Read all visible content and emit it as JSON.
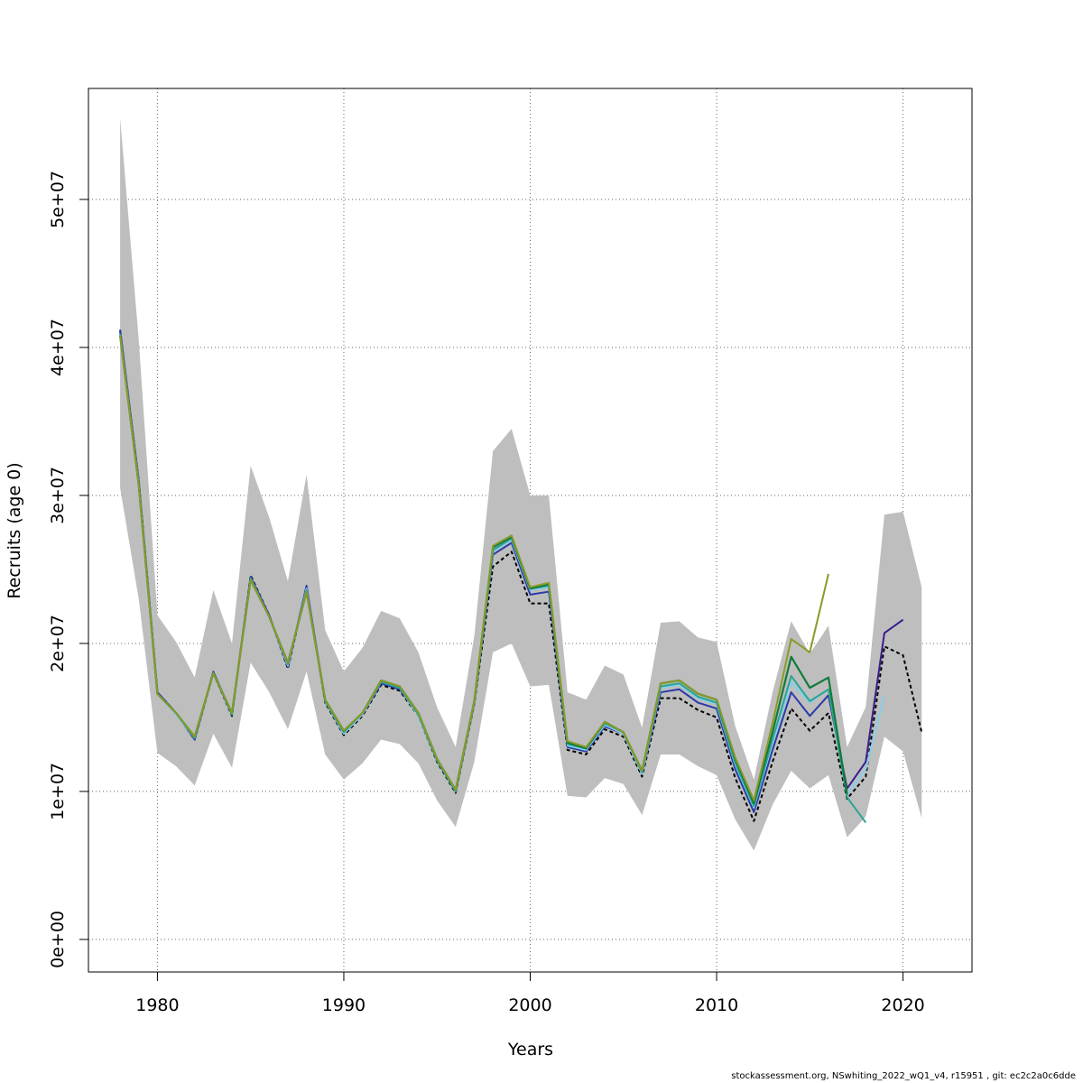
{
  "chart_data": {
    "type": "line",
    "xlabel": "Years",
    "ylabel": "Recruits (age 0)",
    "xlim": [
      1976.3,
      2023.7
    ],
    "ylim": [
      -2200000,
      57500000
    ],
    "x_ticks": [
      {
        "value": 1980,
        "label": "1980"
      },
      {
        "value": 1990,
        "label": "1990"
      },
      {
        "value": 2000,
        "label": "2000"
      },
      {
        "value": 2010,
        "label": "2010"
      },
      {
        "value": 2020,
        "label": "2020"
      }
    ],
    "y_ticks": [
      {
        "value": 0,
        "label": "0e+00"
      },
      {
        "value": 10000000,
        "label": "1e+07"
      },
      {
        "value": 20000000,
        "label": "2e+07"
      },
      {
        "value": 30000000,
        "label": "3e+07"
      },
      {
        "value": 40000000,
        "label": "4e+07"
      },
      {
        "value": 50000000,
        "label": "5e+07"
      }
    ],
    "grid": true,
    "band": {
      "color": "#bebebe",
      "x": [
        1978,
        1979,
        1980,
        1981,
        1982,
        1983,
        1984,
        1985,
        1986,
        1987,
        1988,
        1989,
        1990,
        1991,
        1992,
        1993,
        1994,
        1995,
        1996,
        1997,
        1998,
        1999,
        2000,
        2001,
        2002,
        2003,
        2004,
        2005,
        2006,
        2007,
        2008,
        2009,
        2010,
        2011,
        2012,
        2013,
        2014,
        2015,
        2016,
        2017,
        2018,
        2019,
        2020,
        2021
      ],
      "upper": [
        55500000,
        40500000,
        21900000,
        20100000,
        17700000,
        23600000,
        20000000,
        32000000,
        28500000,
        24200000,
        31400000,
        20900000,
        18100000,
        19700000,
        22200000,
        21700000,
        19400000,
        15700000,
        13000000,
        20500000,
        33000000,
        34500000,
        30000000,
        30000000,
        16700000,
        16200000,
        18500000,
        17900000,
        14300000,
        21400000,
        21500000,
        20400000,
        20100000,
        14400000,
        10800000,
        16700000,
        21500000,
        19300000,
        21200000,
        13000000,
        15700000,
        28700000,
        28900000,
        23800000
      ],
      "lower": [
        30500000,
        23000000,
        12600000,
        11700000,
        10400000,
        13900000,
        11600000,
        18700000,
        16700000,
        14200000,
        18100000,
        12500000,
        10800000,
        11900000,
        13500000,
        13200000,
        11900000,
        9400000,
        7600000,
        12000000,
        19400000,
        20000000,
        17100000,
        17200000,
        9700000,
        9600000,
        10900000,
        10500000,
        8400000,
        12500000,
        12500000,
        11700000,
        11100000,
        8100000,
        6000000,
        9100000,
        11400000,
        10200000,
        11100000,
        6900000,
        8300000,
        13700000,
        12700000,
        8200000
      ]
    },
    "series": [
      {
        "color": "#000000",
        "dashed": true,
        "width": 2,
        "x": [
          1978,
          1979,
          1980,
          1981,
          1982,
          1983,
          1984,
          1985,
          1986,
          1987,
          1988,
          1989,
          1990,
          1991,
          1992,
          1993,
          1994,
          1995,
          1996,
          1997,
          1998,
          1999,
          2000,
          2001,
          2002,
          2003,
          2004,
          2005,
          2006,
          2007,
          2008,
          2009,
          2010,
          2011,
          2012,
          2013,
          2014,
          2015,
          2016,
          2017,
          2018,
          2019,
          2020,
          2021
        ],
        "values": [
          41100000,
          31000000,
          16700000,
          15300000,
          13500000,
          18000000,
          15100000,
          24600000,
          21900000,
          18300000,
          23800000,
          16000000,
          13800000,
          15100000,
          17200000,
          16800000,
          15100000,
          12000000,
          9900000,
          15900000,
          25200000,
          26200000,
          22700000,
          22700000,
          12800000,
          12500000,
          14200000,
          13700000,
          11000000,
          16300000,
          16300000,
          15500000,
          15000000,
          10900000,
          8000000,
          12000000,
          15600000,
          14100000,
          15300000,
          9500000,
          11000000,
          19800000,
          19200000,
          14000000
        ]
      },
      {
        "color": "#2a3aa8",
        "dashed": false,
        "width": 2,
        "x": [
          1978,
          1979,
          1980,
          1981,
          1982,
          1983,
          1984,
          1985,
          1986,
          1987,
          1988,
          1989,
          1990,
          1991,
          1992,
          1993,
          1994,
          1995,
          1996,
          1997,
          1998,
          1999,
          2000,
          2001,
          2002,
          2003,
          2004,
          2005,
          2006,
          2007,
          2008,
          2009,
          2010,
          2011,
          2012,
          2013,
          2014,
          2015,
          2016
        ],
        "values": [
          41200000,
          31000000,
          16700000,
          15300000,
          13500000,
          18100000,
          15200000,
          24500000,
          21900000,
          18400000,
          23900000,
          16100000,
          13900000,
          15200000,
          17300000,
          16900000,
          15200000,
          12100000,
          10000000,
          16000000,
          26000000,
          26800000,
          23300000,
          23500000,
          13000000,
          12700000,
          14400000,
          13900000,
          11200000,
          16700000,
          16900000,
          16000000,
          15600000,
          11500000,
          8600000,
          12800000,
          16700000,
          15100000,
          16500000
        ]
      },
      {
        "color": "#3a1c8c",
        "dashed": false,
        "width": 2,
        "x": [
          2016,
          2017,
          2018,
          2019,
          2020
        ],
        "values": [
          16500000,
          10200000,
          12000000,
          20700000,
          21600000
        ]
      },
      {
        "color": "#87ceeb",
        "dashed": false,
        "width": 2,
        "x": [
          1978,
          1979,
          1980,
          1981,
          1982,
          1983,
          1984,
          1985,
          1986,
          1987,
          1988,
          1989,
          1990,
          1991,
          1992,
          1993,
          1994,
          1995,
          1996,
          1997,
          1998,
          1999,
          2000,
          2001,
          2002,
          2003,
          2004,
          2005,
          2006,
          2007,
          2008,
          2009,
          2010,
          2011,
          2012,
          2013,
          2014,
          2015,
          2016,
          2017,
          2018,
          2019
        ],
        "values": [
          40900000,
          30800000,
          16600000,
          15200000,
          13600000,
          18000000,
          15200000,
          24400000,
          21800000,
          18500000,
          23700000,
          16100000,
          13900000,
          15200000,
          17400000,
          17000000,
          15100000,
          12100000,
          10000000,
          16000000,
          26200000,
          27000000,
          23600000,
          23800000,
          13100000,
          12800000,
          14500000,
          13900000,
          11200000,
          17000000,
          17200000,
          16300000,
          15900000,
          11800000,
          8900000,
          13300000,
          17400000,
          16000000,
          16900000,
          9800000,
          11500000,
          16500000
        ]
      },
      {
        "color": "#2ba593",
        "dashed": false,
        "width": 2,
        "x": [
          1978,
          1979,
          1980,
          1981,
          1982,
          1983,
          1984,
          1985,
          1986,
          1987,
          1988,
          1989,
          1990,
          1991,
          1992,
          1993,
          1994,
          1995,
          1996,
          1997,
          1998,
          1999,
          2000,
          2001,
          2002,
          2003,
          2004,
          2005,
          2006,
          2007,
          2008,
          2009,
          2010,
          2011,
          2012,
          2013,
          2014,
          2015,
          2016,
          2017,
          2018
        ],
        "values": [
          40900000,
          30800000,
          16600000,
          15300000,
          13600000,
          18000000,
          15200000,
          24400000,
          21800000,
          18600000,
          23600000,
          16100000,
          14000000,
          15300000,
          17400000,
          17000000,
          15200000,
          12100000,
          10000000,
          16000000,
          26300000,
          27100000,
          23700000,
          23900000,
          13200000,
          12900000,
          14600000,
          14000000,
          11300000,
          17100000,
          17300000,
          16400000,
          16000000,
          11900000,
          9000000,
          13500000,
          17800000,
          16100000,
          16900000,
          9600000,
          7900000
        ]
      },
      {
        "color": "#127a3a",
        "dashed": false,
        "width": 2.2,
        "x": [
          1978,
          1979,
          1980,
          1981,
          1982,
          1983,
          1984,
          1985,
          1986,
          1987,
          1988,
          1989,
          1990,
          1991,
          1992,
          1993,
          1994,
          1995,
          1996,
          1997,
          1998,
          1999,
          2000,
          2001,
          2002,
          2003,
          2004,
          2005,
          2006,
          2007,
          2008,
          2009,
          2010,
          2011,
          2012,
          2013,
          2014,
          2015,
          2016,
          2017
        ],
        "values": [
          40800000,
          30700000,
          16600000,
          15300000,
          13700000,
          18000000,
          15300000,
          24300000,
          21800000,
          18700000,
          23500000,
          16200000,
          14100000,
          15300000,
          17500000,
          17100000,
          15300000,
          12200000,
          10100000,
          16100000,
          26500000,
          27200000,
          23700000,
          24000000,
          13300000,
          12900000,
          14700000,
          14000000,
          11400000,
          17300000,
          17500000,
          16600000,
          16200000,
          12200000,
          9200000,
          14000000,
          19100000,
          17000000,
          17700000,
          9800000
        ]
      },
      {
        "color": "#8a9a28",
        "dashed": false,
        "width": 2,
        "x": [
          1978,
          1979,
          1980,
          1981,
          1982,
          1983,
          1984,
          1985,
          1986,
          1987,
          1988,
          1989,
          1990,
          1991,
          1992,
          1993,
          1994,
          1995,
          1996,
          1997,
          1998,
          1999,
          2000,
          2001,
          2002,
          2003,
          2004,
          2005,
          2006,
          2007,
          2008,
          2009,
          2010,
          2011,
          2012,
          2013,
          2014,
          2015,
          2016
        ],
        "values": [
          40800000,
          30700000,
          16600000,
          15300000,
          13700000,
          18000000,
          15300000,
          24300000,
          21800000,
          18700000,
          23500000,
          16200000,
          14100000,
          15300000,
          17500000,
          17100000,
          15300000,
          12200000,
          10100000,
          16100000,
          26600000,
          27300000,
          23800000,
          24100000,
          13400000,
          13000000,
          14700000,
          14000000,
          11400000,
          17300000,
          17500000,
          16600000,
          16200000,
          12300000,
          9400000,
          14600000,
          20300000,
          19400000,
          24700000
        ]
      }
    ]
  },
  "footer": {
    "text": "stockassessment.org, NSwhiting_2022_wQ1_v4, r15951 , git: ec2c2a0c6dde"
  }
}
